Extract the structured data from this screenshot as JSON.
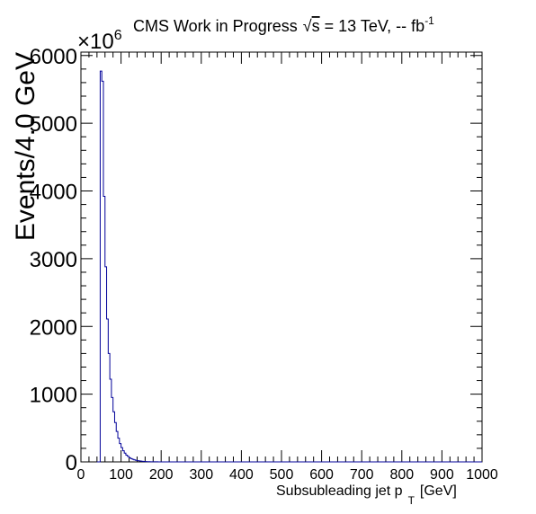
{
  "chart_data": {
    "type": "histogram",
    "title_main": "CMS Work in Progress",
    "title_sqrt": "√",
    "title_s": "s",
    "title_rest": " = 13 TeV, -- fb",
    "title_sup": "-1",
    "ylabel": "Events/4.0 GeV",
    "xlabel_main": "Subsubleading jet p",
    "xlabel_sub": "T",
    "xlabel_unit": "[GeV]",
    "y_multiplier_base": "×10",
    "y_multiplier_exp": "6",
    "xlim": [
      0,
      1000
    ],
    "ylim": [
      0,
      6050
    ],
    "x_ticks": [
      "0",
      "100",
      "200",
      "300",
      "400",
      "500",
      "600",
      "700",
      "800",
      "900",
      "1000"
    ],
    "y_ticks": [
      "0",
      "1000",
      "2000",
      "3000",
      "4000",
      "5000",
      "6000"
    ],
    "bin_width": 4,
    "bin_edges_start": 40,
    "bin_values": [
      0,
      0,
      5770,
      5620,
      3920,
      2880,
      2110,
      1600,
      1220,
      950,
      740,
      580,
      450,
      350,
      270,
      210,
      165,
      130,
      100,
      80,
      62,
      48,
      38,
      30,
      24,
      19,
      15,
      12,
      9,
      7,
      5,
      4,
      3,
      2,
      2,
      1,
      1,
      1,
      0,
      0
    ],
    "grid": false,
    "line_color": "#000099"
  }
}
